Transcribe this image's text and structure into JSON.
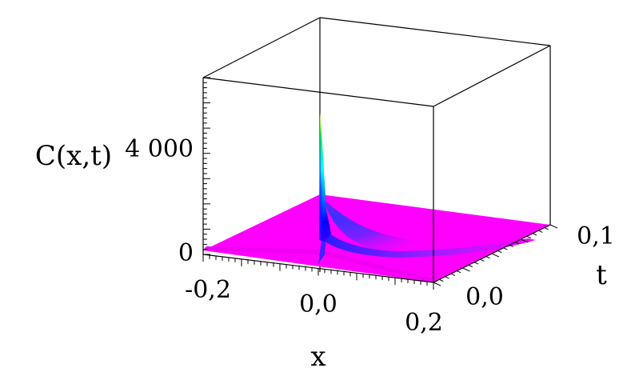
{
  "chart_data": {
    "type": "surface3d",
    "xlabel": "x",
    "ylabel": "t",
    "zlabel": "C(x,t)",
    "x_ticks": [
      "-0,2",
      "0,0",
      "0,2"
    ],
    "t_ticks": [
      "0,0",
      "0,1"
    ],
    "z_ticks": [
      "0",
      "4 000"
    ],
    "xlim": [
      -0.25,
      0.2
    ],
    "tlim": [
      -0.05,
      0.12
    ],
    "zlim": [
      0,
      7000
    ],
    "peak": {
      "x": 0.0,
      "t": 0.0,
      "value": 6200
    },
    "base_color": "#ff00ff",
    "ridge_colors": [
      "#0000ff",
      "#00ffff",
      "#00ff00",
      "#ffff00"
    ],
    "grid": false,
    "box": true
  }
}
